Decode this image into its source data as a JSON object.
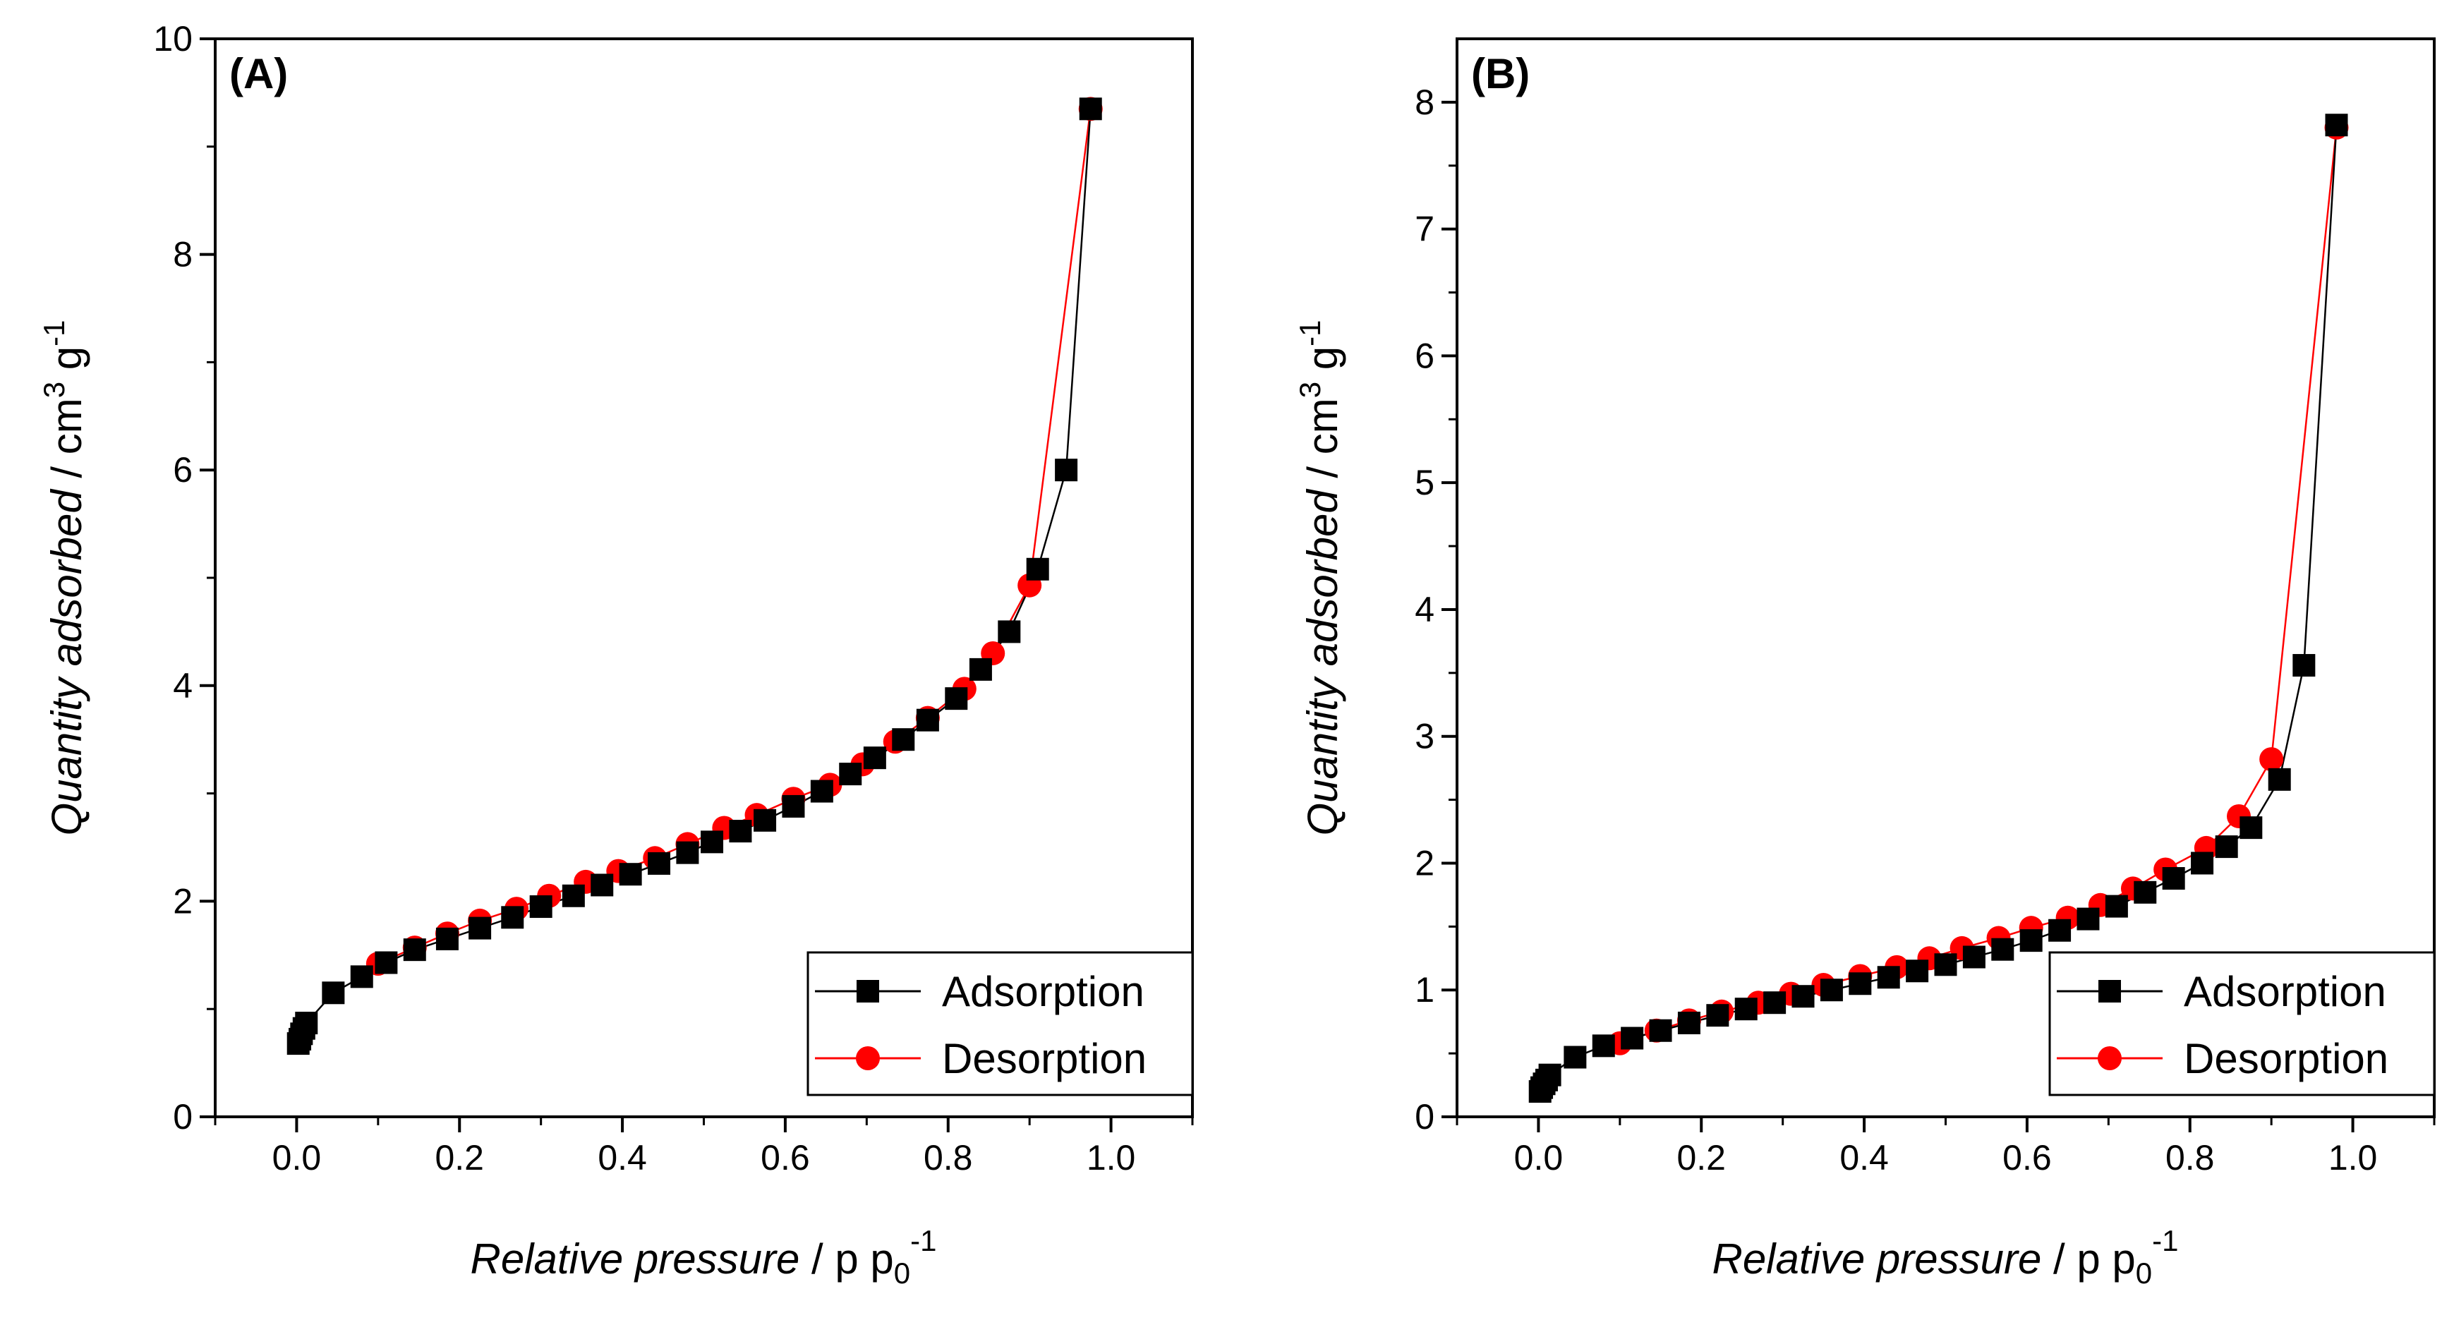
{
  "figure": {
    "series_colors": {
      "adsorption": "#000000",
      "desorption": "#ff0000"
    }
  },
  "chart_data": [
    {
      "panel_label": "(A)",
      "type": "line",
      "xlabel_italic": "Relative pressure",
      "xlabel_rest": " / p p",
      "xlabel_sub": "0",
      "xlabel_sup": "-1",
      "ylabel_italic": "Quantity adsorbed",
      "ylabel_rest": " / cm",
      "ylabel_sup": "3",
      "ylabel_tail": " g",
      "ylabel_sup2": "-1",
      "xlim": [
        -0.1,
        1.1
      ],
      "ylim": [
        0,
        10
      ],
      "xticks": [
        "0.0",
        "0.2",
        "0.4",
        "0.6",
        "0.8",
        "1.0"
      ],
      "yticks": [
        "0",
        "2",
        "4",
        "6",
        "8",
        "10"
      ],
      "legend_position": "bottom-right",
      "series": [
        {
          "name": "Adsorption",
          "marker": "square",
          "color": "#000000",
          "x": [
            0.002,
            0.004,
            0.006,
            0.009,
            0.012,
            0.045,
            0.08,
            0.11,
            0.145,
            0.185,
            0.225,
            0.265,
            0.3,
            0.34,
            0.375,
            0.41,
            0.445,
            0.48,
            0.51,
            0.545,
            0.575,
            0.61,
            0.645,
            0.68,
            0.71,
            0.745,
            0.775,
            0.81,
            0.84,
            0.875,
            0.91,
            0.945,
            0.975
          ],
          "y": [
            0.68,
            0.72,
            0.77,
            0.82,
            0.87,
            1.15,
            1.3,
            1.43,
            1.55,
            1.65,
            1.75,
            1.85,
            1.95,
            2.05,
            2.15,
            2.25,
            2.35,
            2.45,
            2.55,
            2.65,
            2.75,
            2.88,
            3.02,
            3.18,
            3.33,
            3.5,
            3.68,
            3.88,
            4.15,
            4.5,
            5.08,
            6.0,
            9.35
          ]
        },
        {
          "name": "Desorption",
          "marker": "circle",
          "color": "#ff0000",
          "x": [
            0.975,
            0.9,
            0.855,
            0.82,
            0.775,
            0.735,
            0.695,
            0.655,
            0.61,
            0.565,
            0.525,
            0.48,
            0.44,
            0.395,
            0.355,
            0.31,
            0.27,
            0.225,
            0.185,
            0.145,
            0.1
          ],
          "y": [
            9.35,
            4.93,
            4.3,
            3.97,
            3.7,
            3.48,
            3.27,
            3.08,
            2.95,
            2.8,
            2.68,
            2.53,
            2.4,
            2.28,
            2.18,
            2.05,
            1.93,
            1.82,
            1.7,
            1.57,
            1.42
          ]
        }
      ]
    },
    {
      "panel_label": "(B)",
      "type": "line",
      "xlabel_italic": "Relative pressure",
      "xlabel_rest": " / p p",
      "xlabel_sub": "0",
      "xlabel_sup": "-1",
      "ylabel_italic": "Quantity adsorbed",
      "ylabel_rest": " / cm",
      "ylabel_sup": "3",
      "ylabel_tail": " g",
      "ylabel_sup2": "-1",
      "xlim": [
        -0.1,
        1.1
      ],
      "ylim": [
        0,
        8.5
      ],
      "xticks": [
        "0.0",
        "0.2",
        "0.4",
        "0.6",
        "0.8",
        "1.0"
      ],
      "yticks": [
        "0",
        "1",
        "2",
        "3",
        "4",
        "5",
        "6",
        "7",
        "8"
      ],
      "legend_position": "bottom-right",
      "series": [
        {
          "name": "Adsorption",
          "marker": "square",
          "color": "#000000",
          "x": [
            0.002,
            0.004,
            0.007,
            0.01,
            0.014,
            0.045,
            0.08,
            0.115,
            0.15,
            0.185,
            0.22,
            0.255,
            0.29,
            0.325,
            0.36,
            0.395,
            0.43,
            0.465,
            0.5,
            0.535,
            0.57,
            0.605,
            0.64,
            0.675,
            0.71,
            0.745,
            0.78,
            0.815,
            0.845,
            0.875,
            0.91,
            0.94,
            0.98
          ],
          "y": [
            0.2,
            0.23,
            0.26,
            0.29,
            0.33,
            0.47,
            0.56,
            0.62,
            0.68,
            0.74,
            0.8,
            0.85,
            0.9,
            0.95,
            1.0,
            1.05,
            1.1,
            1.15,
            1.2,
            1.26,
            1.32,
            1.39,
            1.47,
            1.56,
            1.66,
            1.77,
            1.88,
            2.0,
            2.13,
            2.28,
            2.66,
            3.56,
            7.82
          ]
        },
        {
          "name": "Desorption",
          "marker": "circle",
          "color": "#ff0000",
          "x": [
            0.98,
            0.9,
            0.86,
            0.82,
            0.77,
            0.73,
            0.69,
            0.65,
            0.605,
            0.565,
            0.52,
            0.48,
            0.44,
            0.395,
            0.35,
            0.31,
            0.27,
            0.225,
            0.185,
            0.145,
            0.1
          ],
          "y": [
            7.8,
            2.82,
            2.37,
            2.12,
            1.95,
            1.8,
            1.67,
            1.57,
            1.49,
            1.41,
            1.33,
            1.25,
            1.18,
            1.11,
            1.04,
            0.97,
            0.9,
            0.83,
            0.76,
            0.68,
            0.58
          ]
        }
      ]
    }
  ]
}
